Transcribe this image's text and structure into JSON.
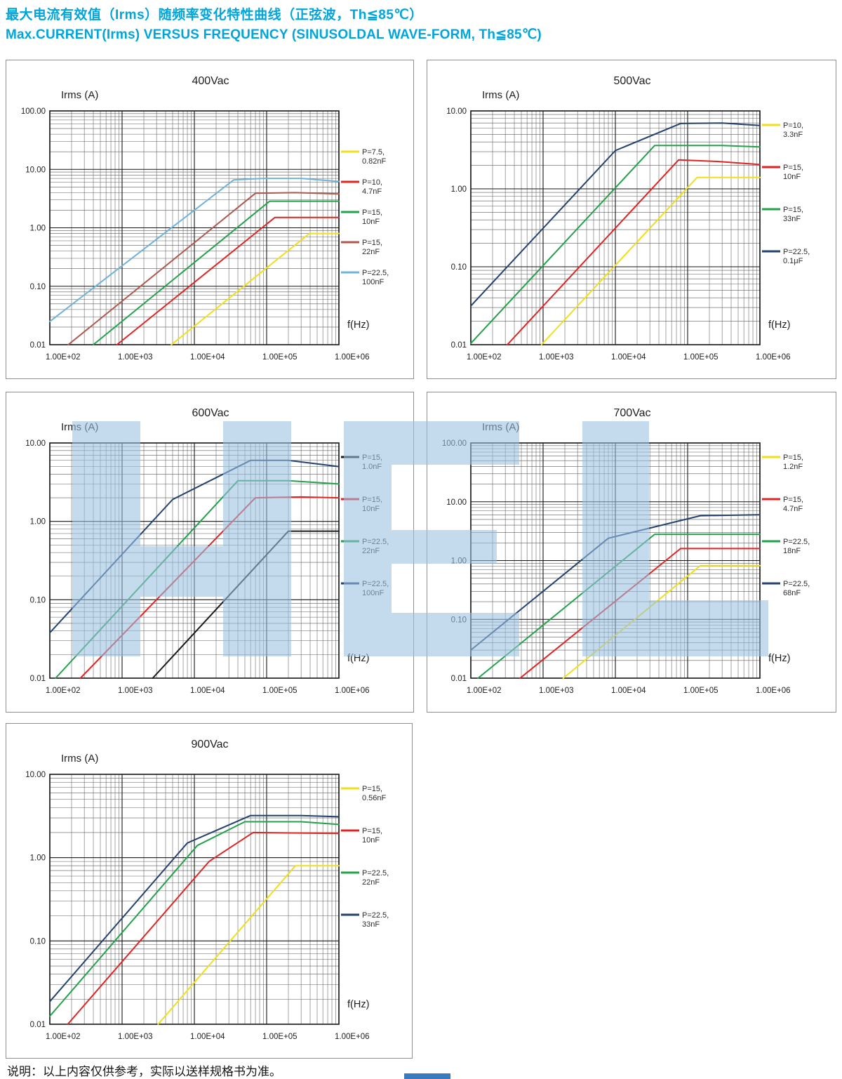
{
  "page": {
    "title_zh": "最大电流有效值（Irms）随频率变化特性曲线（正弦波，Th≦85℃）",
    "title_en": "Max.CURRENT(Irms) VERSUS FREQUENCY (SINUSOLDAL WAVE-FORM, Th≦85℃)",
    "footnote": "说明：以上内容仅供参考，实际以送样规格书为准。",
    "accent_color": "#00a5dc",
    "watermark_color": "#9abfe0"
  },
  "chart_data": [
    {
      "type": "line",
      "title": "400Vac",
      "y_axis_label": "Irms (A)",
      "x_axis_label": "f(Hz)",
      "x_scale": "log",
      "y_scale": "log",
      "xlim": [
        100,
        1000000
      ],
      "ylim": [
        0.01,
        100
      ],
      "x_tick_labels": [
        "1.00E+02",
        "1.00E+03",
        "1.00E+04",
        "1.00E+05",
        "1.00E+06"
      ],
      "y_tick_labels": [
        "100.00",
        "10.00",
        "1.00",
        "0.10",
        "0.01"
      ],
      "grid": true,
      "legend_position": "right",
      "series": [
        {
          "name": "P=7.5, 0.82nF",
          "legend_lines": [
            "P=7.5,",
            "0.82nF"
          ],
          "color": "#efdf1d",
          "points": [
            [
              4800,
              0.01
            ],
            [
              390000,
              0.8
            ],
            [
              1000000,
              0.8
            ]
          ]
        },
        {
          "name": "P=10, 4.7nF",
          "legend_lines": [
            "P=10,",
            "4.7nF"
          ],
          "color": "#e02424",
          "points": [
            [
              850,
              0.01
            ],
            [
              130000,
              1.5
            ],
            [
              1000000,
              1.5
            ]
          ]
        },
        {
          "name": "P=15, 10nF",
          "legend_lines": [
            "P=15,",
            "10nF"
          ],
          "color": "#23a14b",
          "points": [
            [
              400,
              0.01
            ],
            [
              110000,
              2.85
            ],
            [
              1000000,
              2.85
            ]
          ]
        },
        {
          "name": "P=15, 22nF",
          "legend_lines": [
            "P=15,",
            "22nF"
          ],
          "color": "#b0584e",
          "points": [
            [
              180,
              0.01
            ],
            [
              70000,
              3.9
            ],
            [
              250000,
              4.0
            ],
            [
              1000000,
              3.8
            ]
          ]
        },
        {
          "name": "P=22.5, 100nF",
          "legend_lines": [
            "P=22.5,",
            "100nF"
          ],
          "color": "#6fb3d9",
          "points": [
            [
              100,
              0.025
            ],
            [
              35000,
              6.6
            ],
            [
              90000,
              7.0
            ],
            [
              300000,
              7.0
            ],
            [
              1000000,
              6.2
            ]
          ]
        }
      ]
    },
    {
      "type": "line",
      "title": "500Vac",
      "y_axis_label": "Irms (A)",
      "x_axis_label": "f(Hz)",
      "x_scale": "log",
      "y_scale": "log",
      "xlim": [
        100,
        1000000
      ],
      "ylim": [
        0.01,
        10
      ],
      "x_tick_labels": [
        "1.00E+02",
        "1.00E+03",
        "1.00E+04",
        "1.00E+05",
        "1.00E+06"
      ],
      "y_tick_labels": [
        "10.00",
        "1.00",
        "0.10",
        "0.01"
      ],
      "grid": true,
      "legend_position": "right",
      "series": [
        {
          "name": "P=10, 3.3nF",
          "legend_lines": [
            "P=10,",
            "3.3nF"
          ],
          "color": "#efdf1d",
          "points": [
            [
              950,
              0.01
            ],
            [
              135000,
              1.4
            ],
            [
              1000000,
              1.4
            ]
          ]
        },
        {
          "name": "P=15, 10nF",
          "legend_lines": [
            "P=15,",
            "10nF"
          ],
          "color": "#e02424",
          "points": [
            [
              320,
              0.01
            ],
            [
              75000,
              2.35
            ],
            [
              250000,
              2.25
            ],
            [
              1000000,
              2.05
            ]
          ]
        },
        {
          "name": "P=15, 33nF",
          "legend_lines": [
            "P=15,",
            "33nF"
          ],
          "color": "#23a14b",
          "points": [
            [
              100,
              0.0104
            ],
            [
              35000,
              3.6
            ],
            [
              300000,
              3.6
            ],
            [
              1000000,
              3.45
            ]
          ]
        },
        {
          "name": "P=22.5, 0.1μF",
          "legend_lines": [
            "P=22.5,",
            "0.1μF"
          ],
          "color": "#24426e",
          "points": [
            [
              100,
              0.0314
            ],
            [
              10000,
              3.1
            ],
            [
              80000,
              6.9
            ],
            [
              300000,
              7.0
            ],
            [
              1000000,
              6.5
            ]
          ]
        }
      ]
    },
    {
      "type": "line",
      "title": "600Vac",
      "y_axis_label": "Irms (A)",
      "x_axis_label": "f(Hz)",
      "x_scale": "log",
      "y_scale": "log",
      "xlim": [
        100,
        1000000
      ],
      "ylim": [
        0.01,
        10
      ],
      "x_tick_labels": [
        "1.00E+02",
        "1.00E+03",
        "1.00E+04",
        "1.00E+05",
        "1.00E+06"
      ],
      "y_tick_labels": [
        "10.00",
        "1.00",
        "0.10",
        "0.01"
      ],
      "grid": true,
      "legend_position": "right",
      "series": [
        {
          "name": "P=15, 1.0nF",
          "legend_lines": [
            "P=15,",
            "1.0nF"
          ],
          "color": "#1a1a1a",
          "points": [
            [
              2650,
              0.01
            ],
            [
              200000,
              0.75
            ],
            [
              1000000,
              0.75
            ]
          ]
        },
        {
          "name": "P=15, 10nF",
          "legend_lines": [
            "P=15,",
            "10nF"
          ],
          "color": "#e02424",
          "points": [
            [
              265,
              0.01
            ],
            [
              70000,
              2.0
            ],
            [
              300000,
              2.05
            ],
            [
              1000000,
              2.0
            ]
          ]
        },
        {
          "name": "P=22.5, 22nF",
          "legend_lines": [
            "P=22.5,",
            "22nF"
          ],
          "color": "#23a14b",
          "points": [
            [
              120,
              0.01
            ],
            [
              40000,
              3.3
            ],
            [
              200000,
              3.3
            ],
            [
              1000000,
              3.0
            ]
          ]
        },
        {
          "name": "P=22.5, 100nF",
          "legend_lines": [
            "P=22.5,",
            "100nF"
          ],
          "color": "#24426e",
          "points": [
            [
              100,
              0.038
            ],
            [
              5000,
              1.9
            ],
            [
              60000,
              6.0
            ],
            [
              200000,
              6.0
            ],
            [
              1000000,
              5.0
            ]
          ]
        }
      ]
    },
    {
      "type": "line",
      "title": "700Vac",
      "y_axis_label": "Irms (A)",
      "x_axis_label": "f(Hz)",
      "x_scale": "log",
      "y_scale": "log",
      "xlim": [
        100,
        1000000
      ],
      "ylim": [
        0.01,
        100
      ],
      "x_tick_labels": [
        "1.00E+02",
        "1.00E+03",
        "1.00E+04",
        "1.00E+05",
        "1.00E+06"
      ],
      "y_tick_labels": [
        "100.00",
        "10.00",
        "1.00",
        "0.10",
        "0.01"
      ],
      "grid": true,
      "legend_position": "right",
      "series": [
        {
          "name": "P=15, 1.2nF",
          "legend_lines": [
            "P=15,",
            "1.2nF"
          ],
          "color": "#efdf1d",
          "points": [
            [
              1900,
              0.01
            ],
            [
              150000,
              0.82
            ],
            [
              1000000,
              0.82
            ]
          ]
        },
        {
          "name": "P=15, 4.7nF",
          "legend_lines": [
            "P=15,",
            "4.7nF"
          ],
          "color": "#e02424",
          "points": [
            [
              480,
              0.01
            ],
            [
              80000,
              1.6
            ],
            [
              1000000,
              1.6
            ]
          ]
        },
        {
          "name": "P=22.5, 18nF",
          "legend_lines": [
            "P=22.5,",
            "18nF"
          ],
          "color": "#23a14b",
          "points": [
            [
              126,
              0.01
            ],
            [
              35000,
              2.8
            ],
            [
              1000000,
              2.8
            ]
          ]
        },
        {
          "name": "P=22.5, 68nF",
          "legend_lines": [
            "P=22.5,",
            "68nF"
          ],
          "color": "#24426e",
          "points": [
            [
              100,
              0.03
            ],
            [
              8000,
              2.4
            ],
            [
              150000,
              5.8
            ],
            [
              1000000,
              6.0
            ]
          ]
        }
      ]
    },
    {
      "type": "line",
      "title": "900Vac",
      "y_axis_label": "Irms (A)",
      "x_axis_label": "f(Hz)",
      "x_scale": "log",
      "y_scale": "log",
      "xlim": [
        100,
        1000000
      ],
      "ylim": [
        0.01,
        10
      ],
      "x_tick_labels": [
        "1.00E+02",
        "1.00E+03",
        "1.00E+04",
        "1.00E+05",
        "1.00E+06"
      ],
      "y_tick_labels": [
        "10.00",
        "1.00",
        "0.10",
        "0.01"
      ],
      "grid": true,
      "legend_position": "right",
      "series": [
        {
          "name": "P=15, 0.56nF",
          "legend_lines": [
            "P=15,",
            "0.56nF"
          ],
          "color": "#efdf1d",
          "points": [
            [
              3150,
              0.01
            ],
            [
              250000,
              0.8
            ],
            [
              1000000,
              0.8
            ]
          ]
        },
        {
          "name": "P=15, 10nF",
          "legend_lines": [
            "P=15,",
            "10nF"
          ],
          "color": "#e02424",
          "points": [
            [
              177,
              0.01
            ],
            [
              16000,
              0.9
            ],
            [
              65000,
              2.0
            ],
            [
              1000000,
              1.95
            ]
          ]
        },
        {
          "name": "P=22.5, 22nF",
          "legend_lines": [
            "P=22.5,",
            "22nF"
          ],
          "color": "#23a14b",
          "points": [
            [
              100,
              0.0125
            ],
            [
              11000,
              1.4
            ],
            [
              50000,
              2.7
            ],
            [
              300000,
              2.7
            ],
            [
              1000000,
              2.5
            ]
          ]
        },
        {
          "name": "P=22.5, 33nF",
          "legend_lines": [
            "P=22.5,",
            "33nF"
          ],
          "color": "#24426e",
          "points": [
            [
              100,
              0.0187
            ],
            [
              8000,
              1.5
            ],
            [
              60000,
              3.2
            ],
            [
              300000,
              3.2
            ],
            [
              1000000,
              3.1
            ]
          ]
        }
      ]
    }
  ]
}
